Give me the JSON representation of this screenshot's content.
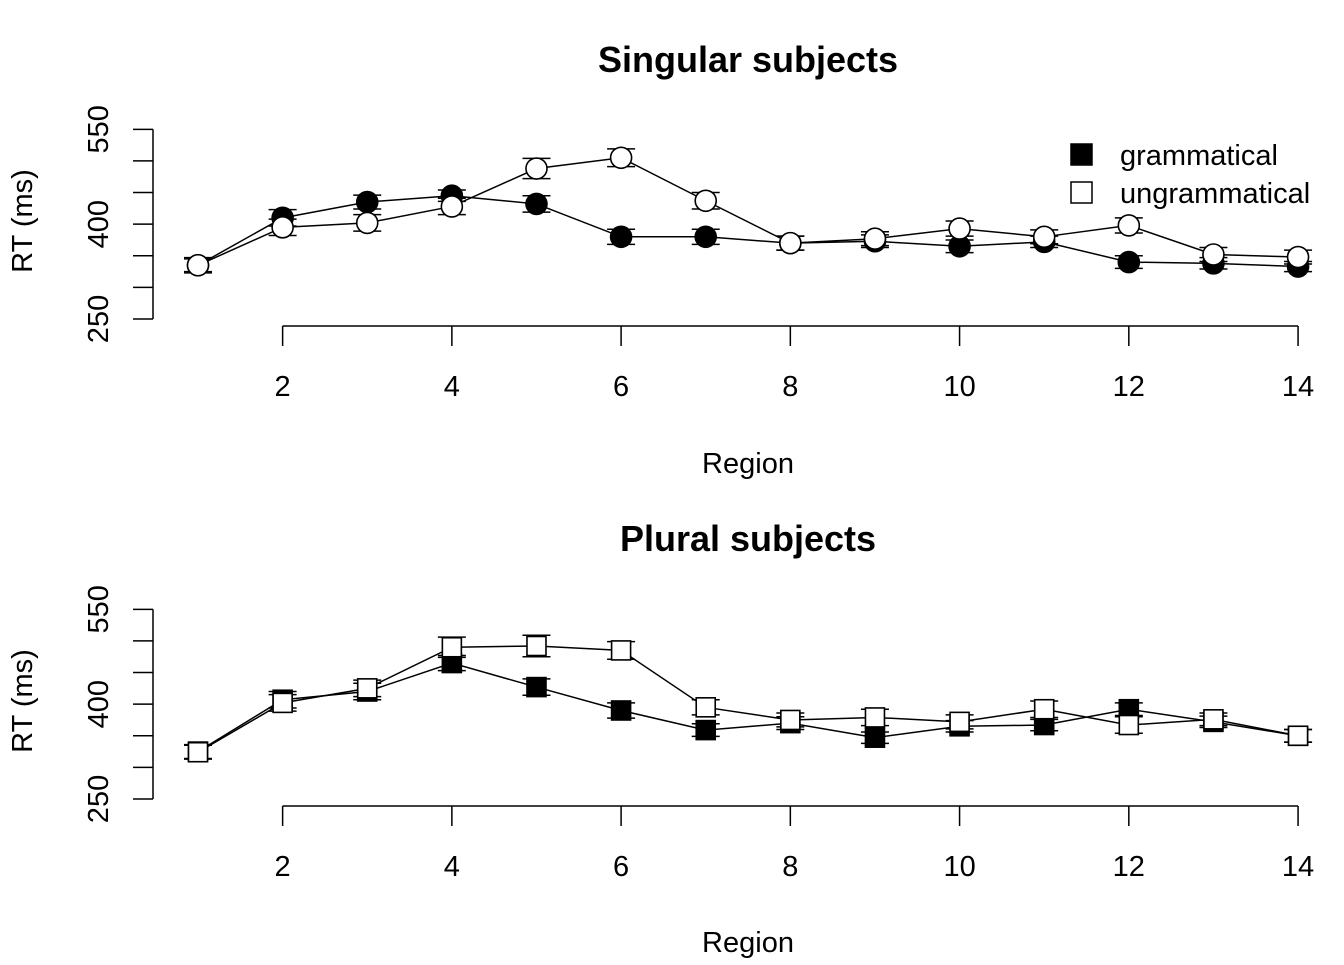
{
  "chart_data": [
    {
      "type": "line",
      "title": "Singular subjects",
      "xlabel": "Region",
      "ylabel": "RT (ms)",
      "x": [
        1,
        2,
        3,
        4,
        5,
        6,
        7,
        8,
        9,
        10,
        11,
        12,
        13,
        14
      ],
      "xticks": [
        2,
        4,
        6,
        8,
        10,
        12,
        14
      ],
      "yticks": [
        250,
        400,
        550
      ],
      "ylim": [
        250,
        560
      ],
      "marker": "circle",
      "legend": {
        "position": "top-right",
        "entries": [
          "grammatical",
          "ungrammatical"
        ]
      },
      "series": [
        {
          "name": "grammatical",
          "fill": "#000000",
          "values": [
            335,
            410,
            435,
            445,
            432,
            380,
            380,
            370,
            373,
            365,
            372,
            340,
            338,
            333
          ],
          "errors": [
            10,
            13,
            11,
            9,
            13,
            12,
            12,
            11,
            10,
            10,
            9,
            10,
            9,
            8
          ]
        },
        {
          "name": "ungrammatical",
          "fill": "#ffffff",
          "values": [
            335,
            395,
            402,
            428,
            488,
            505,
            437,
            370,
            377,
            393,
            380,
            398,
            352,
            348
          ],
          "errors": [
            12,
            13,
            13,
            13,
            16,
            14,
            13,
            11,
            11,
            12,
            11,
            12,
            11,
            11
          ]
        }
      ]
    },
    {
      "type": "line",
      "title": "Plural subjects",
      "xlabel": "Region",
      "ylabel": "RT (ms)",
      "x": [
        1,
        2,
        3,
        4,
        5,
        6,
        7,
        8,
        9,
        10,
        11,
        12,
        13,
        14
      ],
      "xticks": [
        2,
        4,
        6,
        8,
        10,
        12,
        14
      ],
      "yticks": [
        250,
        400,
        550
      ],
      "ylim": [
        250,
        560
      ],
      "marker": "square",
      "series": [
        {
          "name": "grammatical",
          "fill": "#000000",
          "values": [
            325,
            407,
            420,
            465,
            427,
            390,
            359,
            370,
            347,
            365,
            367,
            392,
            372,
            350
          ],
          "errors": [
            11,
            13,
            13,
            12,
            13,
            12,
            10,
            10,
            9,
            9,
            9,
            10,
            9,
            10
          ]
        },
        {
          "name": "ungrammatical",
          "fill": "#ffffff",
          "values": [
            324,
            402,
            425,
            490,
            492,
            485,
            395,
            375,
            379,
            372,
            392,
            367,
            376,
            350
          ],
          "errors": [
            11,
            13,
            13,
            16,
            17,
            14,
            12,
            11,
            13,
            11,
            13,
            13,
            10,
            10
          ]
        }
      ]
    }
  ]
}
